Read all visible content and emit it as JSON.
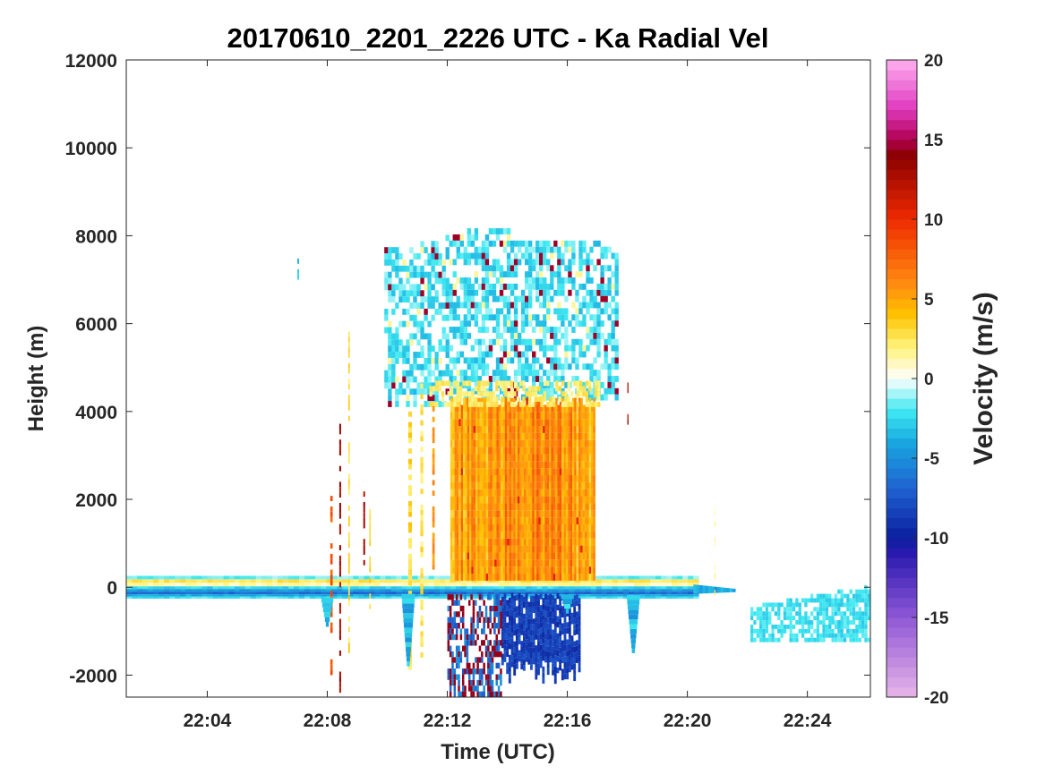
{
  "chart_data": {
    "type": "heatmap",
    "title": "20170610_2201_2226 UTC - Ka Radial Vel",
    "xlabel": "Time (UTC)",
    "ylabel": "Height (m)",
    "x_unit": "minutes since 22:00 UTC",
    "xlim": [
      1.3,
      26.1
    ],
    "ylim": [
      -2500,
      12000
    ],
    "x_ticks": [
      4,
      8,
      12,
      16,
      20,
      24
    ],
    "x_tick_labels": [
      "22:04",
      "22:08",
      "22:12",
      "22:16",
      "22:20",
      "22:24"
    ],
    "y_ticks": [
      -2000,
      0,
      2000,
      4000,
      6000,
      8000,
      10000,
      12000
    ],
    "y_tick_labels": [
      "-2000",
      "0",
      "2000",
      "4000",
      "6000",
      "8000",
      "10000",
      "12000"
    ],
    "colorbar": {
      "label": "Velocity (m/s)",
      "range": [
        -20,
        20
      ],
      "ticks": [
        -20,
        -15,
        -10,
        -5,
        0,
        5,
        10,
        15,
        20
      ],
      "tick_labels": [
        "-20",
        "-15",
        "-10",
        "-5",
        "0",
        "5",
        "10",
        "15",
        "20"
      ],
      "colormap_stops": [
        {
          "v": -20,
          "color": "#e8b5e8"
        },
        {
          "v": -15,
          "color": "#8f58d6"
        },
        {
          "v": -11,
          "color": "#2a1ab0"
        },
        {
          "v": -10,
          "color": "#0a1f9e"
        },
        {
          "v": -7,
          "color": "#1f5fd0"
        },
        {
          "v": -4,
          "color": "#19a8e0"
        },
        {
          "v": -2,
          "color": "#3ee8f0"
        },
        {
          "v": 0,
          "color": "#ffffff"
        },
        {
          "v": 2,
          "color": "#fff27a"
        },
        {
          "v": 4,
          "color": "#ffc200"
        },
        {
          "v": 6,
          "color": "#ff8a10"
        },
        {
          "v": 10,
          "color": "#ee2a00"
        },
        {
          "v": 14,
          "color": "#8a0000"
        },
        {
          "v": 15,
          "color": "#b00050"
        },
        {
          "v": 17,
          "color": "#e03cc0"
        },
        {
          "v": 20,
          "color": "#ffb0f0"
        }
      ]
    },
    "regions": [
      {
        "name": "near-surface clutter band",
        "t": [
          1.3,
          20.2
        ],
        "h": [
          -250,
          250
        ],
        "velocity": -4
      },
      {
        "name": "surface clutter continuation",
        "t": [
          20.2,
          21.6
        ],
        "h": [
          -200,
          80
        ],
        "velocity": -3
      },
      {
        "name": "warm stratiform precipitation",
        "t": [
          12.1,
          16.9
        ],
        "h": [
          100,
          4200
        ],
        "velocity": 6
      },
      {
        "name": "upper cloud",
        "t": [
          9.9,
          17.6
        ],
        "h": [
          4200,
          7900
        ],
        "velocity": -1
      },
      {
        "name": "below-ground mirror core",
        "t": [
          13.8,
          16.4
        ],
        "h": [
          -1900,
          -250
        ],
        "velocity": -9
      },
      {
        "name": "late low echo",
        "t": [
          22.1,
          26.1
        ],
        "h": [
          -1300,
          -400
        ],
        "velocity": -2
      }
    ]
  }
}
